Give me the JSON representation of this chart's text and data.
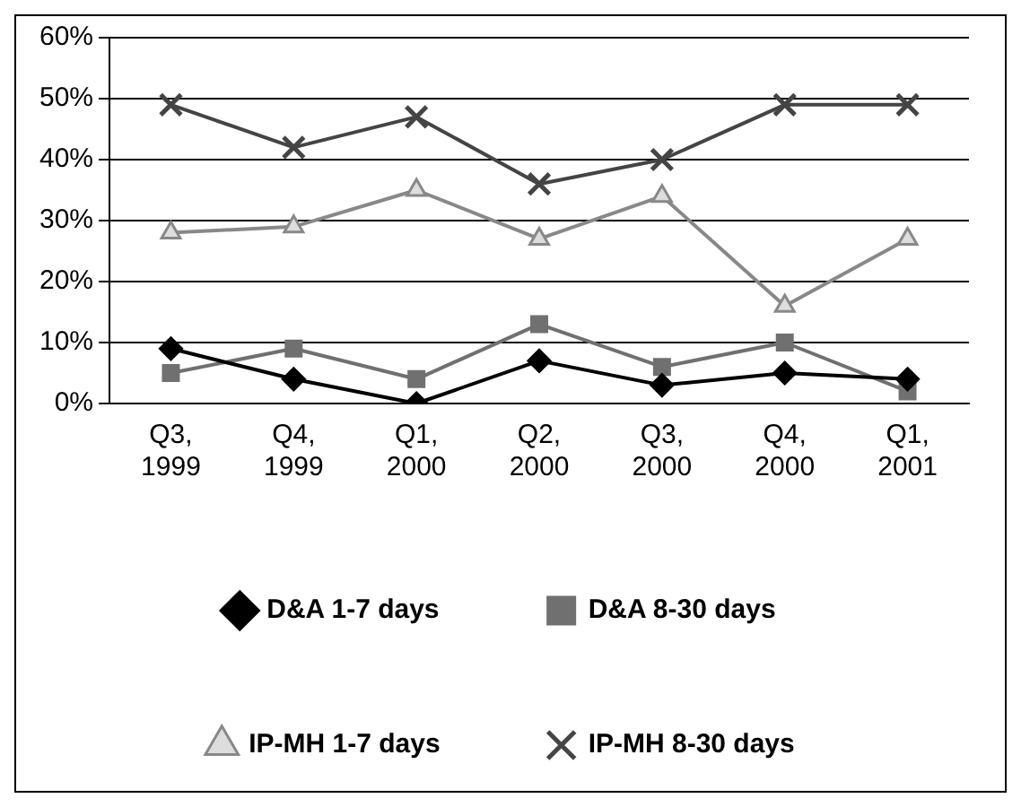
{
  "chart_data": {
    "type": "line",
    "categories": [
      "Q3, 1999",
      "Q4, 1999",
      "Q1, 2000",
      "Q2, 2000",
      "Q3, 2000",
      "Q4, 2000",
      "Q1, 2001"
    ],
    "series": [
      {
        "name": "D&A 1-7 days",
        "color": "#000000",
        "marker": "diamond",
        "values": [
          9,
          4,
          0,
          7,
          3,
          5,
          4
        ]
      },
      {
        "name": "D&A 8-30 days",
        "color": "#707070",
        "marker": "square",
        "values": [
          5,
          9,
          4,
          13,
          6,
          10,
          2
        ]
      },
      {
        "name": "IP-MH 1-7 days",
        "color": "#888888",
        "marker": "triangle",
        "values": [
          28,
          29,
          35,
          27,
          34,
          16,
          27
        ]
      },
      {
        "name": "IP-MH 8-30 days",
        "color": "#444444",
        "marker": "cross",
        "values": [
          49,
          42,
          47,
          36,
          40,
          49,
          49
        ]
      }
    ],
    "ylim": [
      0,
      60
    ],
    "yticks": [
      {
        "value": 0,
        "label": "0%"
      },
      {
        "value": 10,
        "label": "10%"
      },
      {
        "value": 20,
        "label": "20%"
      },
      {
        "value": 30,
        "label": "30%"
      },
      {
        "value": 40,
        "label": "40%"
      },
      {
        "value": 50,
        "label": "50%"
      },
      {
        "value": 60,
        "label": "60%"
      }
    ],
    "grid": "y",
    "legend": "bottom"
  }
}
